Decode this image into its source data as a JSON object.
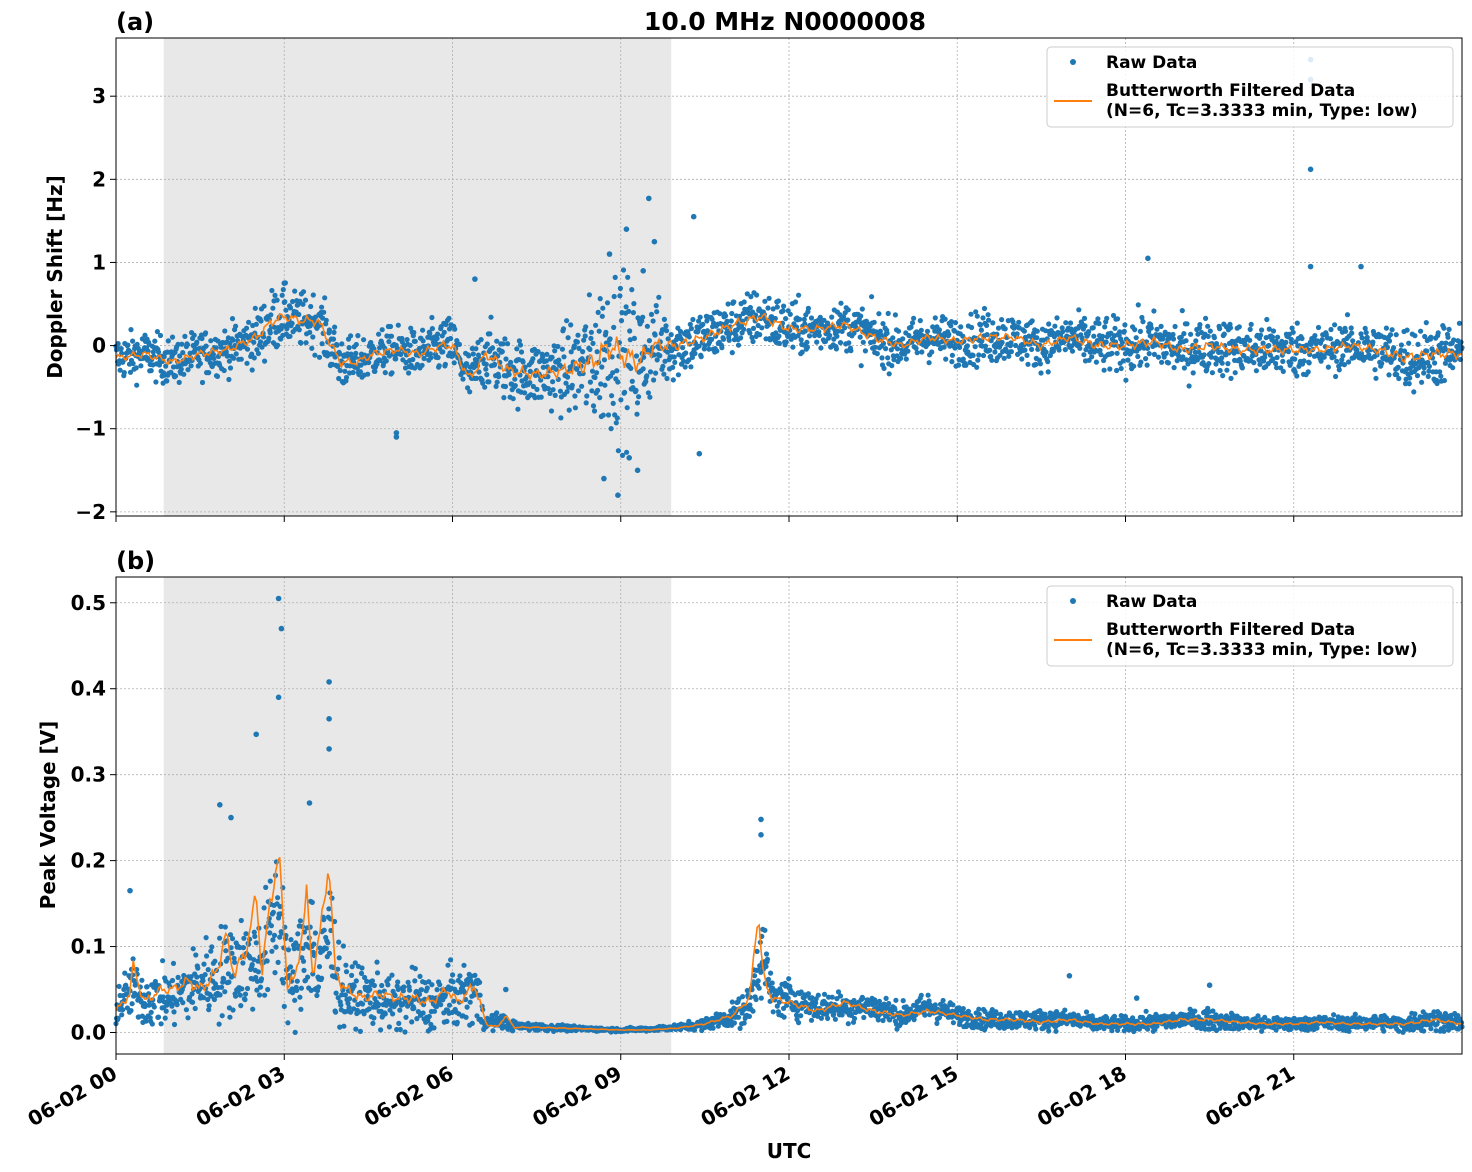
{
  "figure": {
    "title": "10.0 MHz N0000008",
    "xlabel": "UTC",
    "x_tick_labels": [
      "06-02 00",
      "06-02 03",
      "06-02 06",
      "06-02 09",
      "06-02 12",
      "06-02 15",
      "06-02 18",
      "06-02 21"
    ]
  },
  "chart_data": [
    {
      "panel_label": "(a)",
      "type": "scatter",
      "ylabel": "Doppler Shift [Hz]",
      "xlim": [
        0,
        24
      ],
      "ylim": [
        -2.05,
        3.7
      ],
      "yticks": [
        -2,
        -1,
        0,
        1,
        2,
        3
      ],
      "ytick_labels": [
        "−2",
        "−1",
        "0",
        "1",
        "2",
        "3"
      ],
      "xticks": [
        0,
        3,
        6,
        9,
        12,
        15,
        18,
        21
      ],
      "grid": true,
      "shaded_region": [
        0.85,
        9.9
      ],
      "shade_color": "#e8e8e8",
      "legend_position": "top-right",
      "series": [
        {
          "name": "Raw Data",
          "kind": "points",
          "color": "#1f77b4",
          "x": [
            0,
            0.5,
            1.0,
            1.5,
            2.0,
            2.5,
            2.8,
            3.0,
            3.3,
            3.6,
            4.0,
            4.3,
            4.6,
            5.0,
            5.4,
            5.8,
            6.0,
            6.3,
            6.6,
            7.0,
            7.5,
            8.0,
            8.5,
            8.8,
            9.0,
            9.3,
            9.6,
            10.0,
            10.5,
            11.0,
            11.5,
            12.0,
            12.5,
            13.0,
            13.5,
            14.0,
            14.5,
            15.0,
            15.5,
            16.0,
            16.5,
            17.0,
            17.5,
            18.0,
            18.5,
            19.0,
            19.5,
            20.0,
            20.5,
            21.0,
            21.5,
            22.0,
            22.5,
            23.0,
            23.5,
            24.0
          ],
          "y": [
            -0.15,
            -0.1,
            -0.2,
            -0.1,
            -0.05,
            0.1,
            0.3,
            0.35,
            0.3,
            0.3,
            -0.2,
            -0.2,
            -0.1,
            -0.05,
            -0.1,
            0.0,
            0.0,
            -0.4,
            -0.1,
            -0.3,
            -0.35,
            -0.3,
            -0.2,
            0.0,
            -0.1,
            -0.2,
            0.0,
            0.0,
            0.1,
            0.25,
            0.35,
            0.2,
            0.2,
            0.25,
            0.1,
            0.0,
            0.1,
            0.05,
            0.1,
            0.1,
            0.0,
            0.1,
            0.0,
            0.0,
            0.05,
            -0.05,
            0.0,
            -0.05,
            -0.05,
            -0.05,
            -0.05,
            0.0,
            -0.05,
            -0.15,
            -0.1,
            -0.1
          ],
          "spread": [
            0.25,
            0.25,
            0.25,
            0.25,
            0.25,
            0.3,
            0.35,
            0.3,
            0.3,
            0.3,
            0.3,
            0.25,
            0.25,
            0.25,
            0.25,
            0.3,
            0.3,
            0.3,
            0.35,
            0.35,
            0.35,
            0.45,
            0.7,
            0.9,
            0.9,
            0.7,
            0.5,
            0.35,
            0.3,
            0.3,
            0.3,
            0.3,
            0.25,
            0.25,
            0.3,
            0.25,
            0.25,
            0.25,
            0.3,
            0.25,
            0.25,
            0.25,
            0.3,
            0.3,
            0.3,
            0.3,
            0.3,
            0.3,
            0.3,
            0.3,
            0.25,
            0.25,
            0.3,
            0.35,
            0.35,
            0.3
          ],
          "outliers_x": [
            8.95,
            9.5,
            9.6,
            9.3,
            9.1,
            9.15,
            10.3,
            10.4,
            21.3,
            21.3,
            21.3,
            21.3,
            22.2,
            6.4,
            18.4,
            5.0,
            5.0,
            3.0,
            8.7,
            8.8,
            9.4
          ],
          "outliers_y": [
            -1.8,
            1.77,
            1.25,
            -1.5,
            1.4,
            -1.35,
            1.55,
            -1.3,
            3.44,
            3.2,
            2.12,
            0.95,
            0.95,
            0.8,
            1.05,
            -1.1,
            -1.05,
            0.75,
            -1.6,
            1.1,
            0.9
          ]
        },
        {
          "name": "Butterworth Filtered Data\n(N=6, Tc=3.3333 min, Type: low)",
          "kind": "line",
          "color": "#ff7f0e",
          "x": [
            0,
            0.5,
            1.0,
            1.5,
            2.0,
            2.5,
            2.8,
            3.0,
            3.3,
            3.6,
            4.0,
            4.3,
            4.6,
            5.0,
            5.4,
            5.8,
            6.0,
            6.3,
            6.6,
            7.0,
            7.5,
            8.0,
            8.5,
            8.8,
            9.0,
            9.3,
            9.6,
            10.0,
            10.5,
            11.0,
            11.5,
            12.0,
            12.5,
            13.0,
            13.5,
            14.0,
            14.5,
            15.0,
            15.5,
            16.0,
            16.5,
            17.0,
            17.5,
            18.0,
            18.5,
            19.0,
            19.5,
            20.0,
            20.5,
            21.0,
            21.5,
            22.0,
            22.5,
            23.0,
            23.5,
            24.0
          ],
          "y": [
            -0.15,
            -0.1,
            -0.2,
            -0.1,
            -0.05,
            0.1,
            0.3,
            0.35,
            0.3,
            0.3,
            -0.2,
            -0.2,
            -0.1,
            -0.05,
            -0.1,
            0.0,
            0.0,
            -0.4,
            -0.1,
            -0.3,
            -0.35,
            -0.3,
            -0.2,
            0.0,
            -0.1,
            -0.2,
            0.0,
            0.0,
            0.1,
            0.25,
            0.35,
            0.2,
            0.2,
            0.25,
            0.1,
            0.0,
            0.1,
            0.05,
            0.1,
            0.1,
            0.0,
            0.1,
            0.0,
            0.0,
            0.05,
            -0.05,
            0.0,
            -0.05,
            -0.05,
            -0.05,
            -0.05,
            0.0,
            -0.05,
            -0.15,
            -0.1,
            -0.1
          ]
        }
      ]
    },
    {
      "panel_label": "(b)",
      "type": "scatter",
      "ylabel": "Peak Voltage [V]",
      "xlim": [
        0,
        24
      ],
      "ylim": [
        -0.025,
        0.53
      ],
      "yticks": [
        0.0,
        0.1,
        0.2,
        0.3,
        0.4,
        0.5
      ],
      "ytick_labels": [
        "0.0",
        "0.1",
        "0.2",
        "0.3",
        "0.4",
        "0.5"
      ],
      "xticks": [
        0,
        3,
        6,
        9,
        12,
        15,
        18,
        21
      ],
      "grid": true,
      "shaded_region": [
        0.85,
        9.9
      ],
      "shade_color": "#e8e8e8",
      "legend_position": "top-right",
      "series": [
        {
          "name": "Raw Data",
          "kind": "points",
          "color": "#1f77b4",
          "x": [
            0,
            0.3,
            0.5,
            1.0,
            1.5,
            1.9,
            2.2,
            2.5,
            2.7,
            2.9,
            3.1,
            3.3,
            3.45,
            3.6,
            3.8,
            4.0,
            4.3,
            4.7,
            5.0,
            5.3,
            5.6,
            5.9,
            6.1,
            6.4,
            6.6,
            6.9,
            7.0,
            7.3,
            8.0,
            8.5,
            9.0,
            9.5,
            10.0,
            10.5,
            11.0,
            11.3,
            11.5,
            11.7,
            12.0,
            12.5,
            13.0,
            13.5,
            14.0,
            14.5,
            15.0,
            15.5,
            16.0,
            16.5,
            17.0,
            17.5,
            18.0,
            18.5,
            19.0,
            19.5,
            20.0,
            20.5,
            21.0,
            21.5,
            22.0,
            22.5,
            23.0,
            23.3,
            23.6,
            24.0
          ],
          "y": [
            0.03,
            0.05,
            0.04,
            0.04,
            0.06,
            0.07,
            0.08,
            0.08,
            0.1,
            0.15,
            0.05,
            0.08,
            0.12,
            0.06,
            0.12,
            0.05,
            0.04,
            0.04,
            0.03,
            0.04,
            0.03,
            0.04,
            0.04,
            0.05,
            0.01,
            0.015,
            0.008,
            0.007,
            0.005,
            0.004,
            0.003,
            0.004,
            0.006,
            0.01,
            0.02,
            0.03,
            0.1,
            0.04,
            0.04,
            0.03,
            0.03,
            0.03,
            0.02,
            0.03,
            0.02,
            0.015,
            0.015,
            0.015,
            0.015,
            0.01,
            0.01,
            0.012,
            0.015,
            0.015,
            0.012,
            0.01,
            0.01,
            0.012,
            0.01,
            0.012,
            0.01,
            0.015,
            0.015,
            0.01
          ],
          "spread": [
            0.02,
            0.03,
            0.03,
            0.03,
            0.04,
            0.05,
            0.05,
            0.05,
            0.06,
            0.08,
            0.05,
            0.06,
            0.07,
            0.05,
            0.07,
            0.04,
            0.03,
            0.03,
            0.03,
            0.03,
            0.03,
            0.03,
            0.03,
            0.04,
            0.008,
            0.008,
            0.005,
            0.004,
            0.003,
            0.002,
            0.002,
            0.002,
            0.003,
            0.006,
            0.012,
            0.02,
            0.05,
            0.02,
            0.02,
            0.015,
            0.015,
            0.015,
            0.012,
            0.015,
            0.01,
            0.01,
            0.01,
            0.01,
            0.01,
            0.008,
            0.008,
            0.008,
            0.01,
            0.01,
            0.008,
            0.008,
            0.007,
            0.008,
            0.007,
            0.008,
            0.008,
            0.012,
            0.01,
            0.008
          ],
          "outliers_x": [
            0.25,
            1.85,
            2.05,
            2.5,
            2.9,
            2.95,
            2.9,
            3.45,
            3.8,
            3.8,
            3.8,
            6.95,
            11.5,
            11.5,
            17.0,
            18.2,
            19.5
          ],
          "outliers_y": [
            0.165,
            0.265,
            0.25,
            0.347,
            0.505,
            0.47,
            0.39,
            0.267,
            0.408,
            0.365,
            0.33,
            0.05,
            0.248,
            0.23,
            0.066,
            0.04,
            0.055
          ]
        },
        {
          "name": "Butterworth Filtered Data\n(N=6, Tc=3.3333 min, Type: low)",
          "kind": "line",
          "color": "#ff7f0e",
          "x": [
            0,
            0.25,
            0.3,
            0.5,
            0.8,
            1.0,
            1.3,
            1.5,
            1.8,
            1.95,
            2.1,
            2.3,
            2.5,
            2.6,
            2.75,
            2.9,
            3.05,
            3.2,
            3.4,
            3.5,
            3.65,
            3.8,
            3.9,
            4.1,
            4.4,
            4.7,
            5.0,
            5.3,
            5.6,
            5.9,
            6.1,
            6.4,
            6.6,
            6.8,
            6.95,
            7.1,
            7.5,
            8.0,
            8.5,
            9.0,
            9.5,
            10.0,
            10.5,
            11.0,
            11.3,
            11.45,
            11.55,
            11.7,
            12.0,
            12.5,
            13.0,
            13.5,
            14.0,
            14.5,
            15.0,
            15.5,
            16.0,
            16.5,
            17.0,
            17.5,
            18.0,
            18.5,
            19.0,
            19.5,
            20.0,
            20.5,
            21.0,
            21.5,
            22.0,
            22.5,
            23.0,
            23.5,
            24.0
          ],
          "y": [
            0.025,
            0.045,
            0.08,
            0.035,
            0.05,
            0.05,
            0.06,
            0.05,
            0.07,
            0.115,
            0.07,
            0.09,
            0.16,
            0.07,
            0.15,
            0.21,
            0.06,
            0.06,
            0.16,
            0.07,
            0.12,
            0.2,
            0.07,
            0.05,
            0.04,
            0.045,
            0.04,
            0.04,
            0.035,
            0.05,
            0.035,
            0.055,
            0.01,
            0.006,
            0.02,
            0.006,
            0.006,
            0.005,
            0.004,
            0.003,
            0.003,
            0.005,
            0.01,
            0.02,
            0.04,
            0.14,
            0.06,
            0.04,
            0.035,
            0.025,
            0.035,
            0.025,
            0.02,
            0.025,
            0.02,
            0.015,
            0.015,
            0.012,
            0.015,
            0.01,
            0.01,
            0.01,
            0.015,
            0.015,
            0.012,
            0.01,
            0.01,
            0.012,
            0.01,
            0.01,
            0.01,
            0.015,
            0.01
          ]
        }
      ]
    }
  ]
}
